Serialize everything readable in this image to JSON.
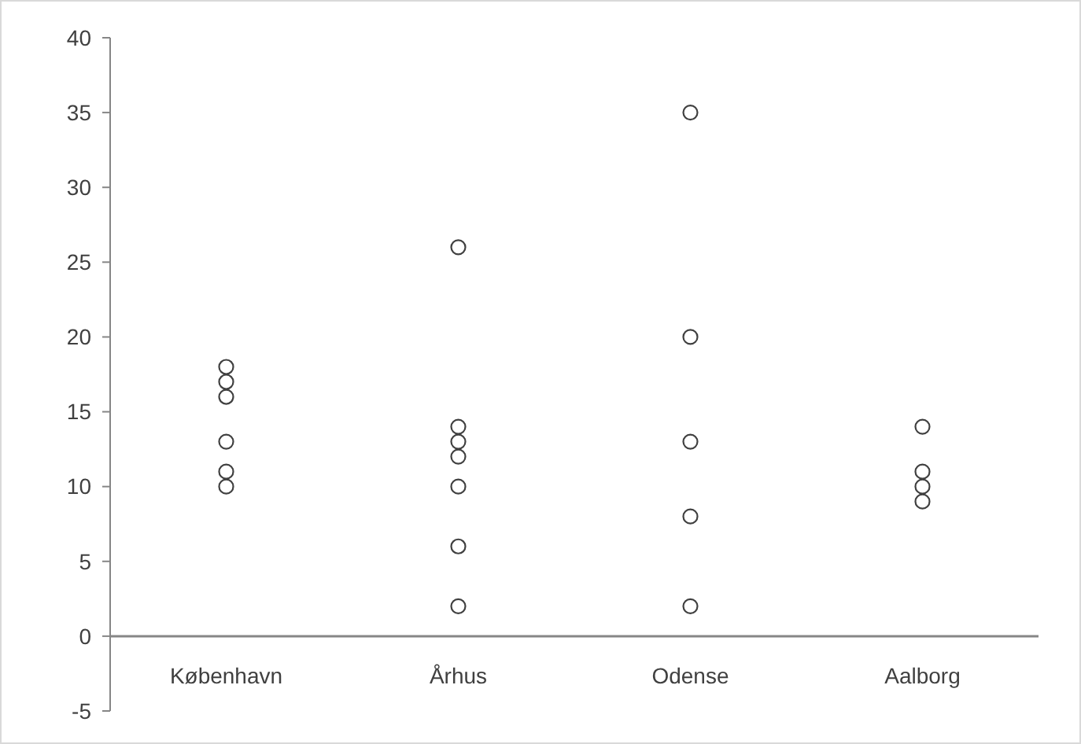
{
  "chart_data": {
    "type": "scatter",
    "categories": [
      "København",
      "Århus",
      "Odense",
      "Aalborg"
    ],
    "series": [
      {
        "color": "#404040",
        "x": [
          "København",
          "København",
          "København",
          "København",
          "København",
          "København",
          "Århus",
          "Århus",
          "Århus",
          "Århus",
          "Århus",
          "Århus",
          "Århus",
          "Odense",
          "Odense",
          "Odense",
          "Odense",
          "Odense",
          "Aalborg",
          "Aalborg",
          "Aalborg",
          "Aalborg"
        ],
        "values": [
          18,
          17,
          16,
          13,
          11,
          10,
          26,
          14,
          13,
          12,
          10,
          6,
          2,
          35,
          20,
          13,
          8,
          2,
          14,
          11,
          10,
          9
        ]
      }
    ],
    "ylim": [
      -5,
      40
    ],
    "yticks": [
      -5,
      0,
      5,
      10,
      15,
      20,
      25,
      30,
      35,
      40
    ],
    "grid": false,
    "marker": "circle"
  }
}
